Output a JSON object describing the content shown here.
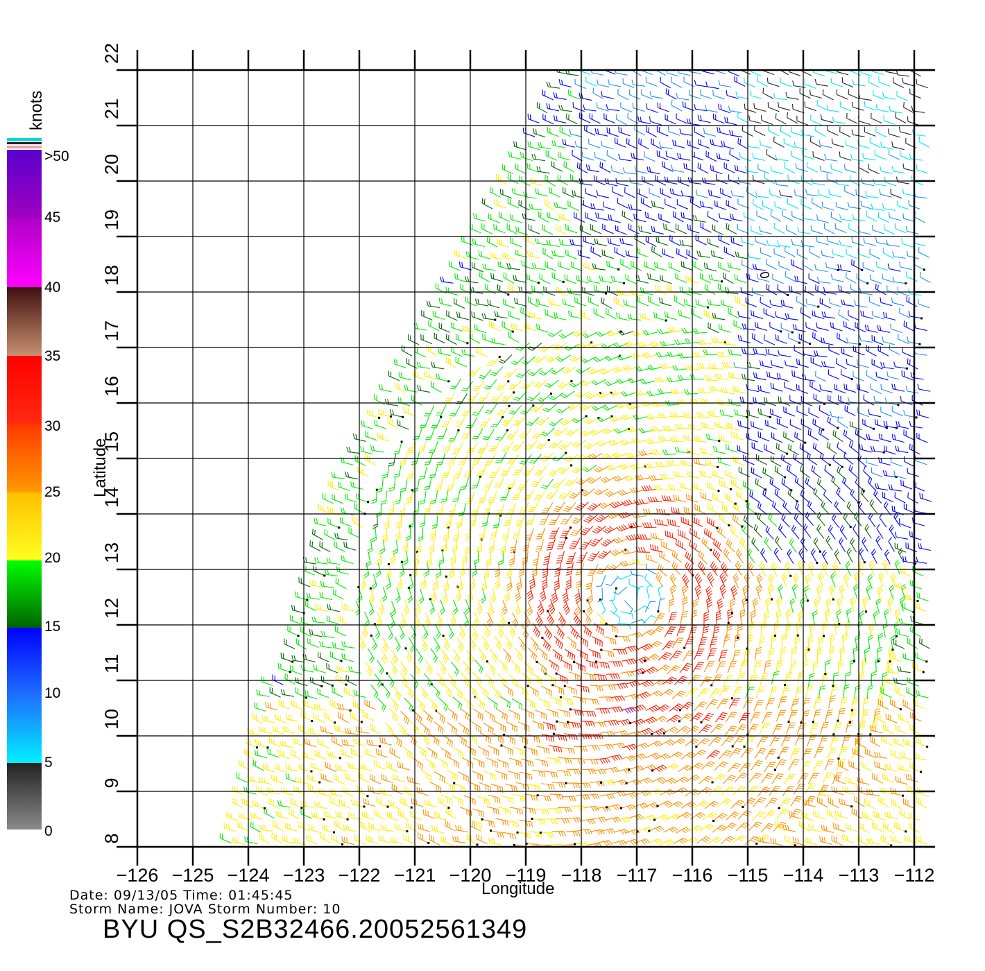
{
  "colorbar": {
    "title": "knots",
    "labels": [
      "0",
      "5",
      "10",
      "15",
      "20",
      "25",
      "30",
      "35",
      "40",
      "45",
      ">50"
    ],
    "colors": {
      "gray": "#7a7a7a",
      "black": "#222222",
      "cyan": "#00e5ff",
      "sky": "#1e90ff",
      "blue": "#0000ff",
      "darkgreen": "#006400",
      "green": "#00ee00",
      "yellow": "#ffee00",
      "orange": "#ff9000",
      "red": "#ff2000",
      "brown": "#c08060",
      "darkbrown": "#401010",
      "magenta": "#ff00ff",
      "purple": "#6a00cc"
    }
  },
  "map": {
    "xlabel": "Longitude",
    "ylabel": "Latitude",
    "lon_ticks": [
      "-126",
      "-125",
      "-124",
      "-123",
      "-122",
      "-121",
      "-120",
      "-119",
      "-118",
      "-117",
      "-116",
      "-115",
      "-114",
      "-113",
      "-112"
    ],
    "lat_ticks": [
      "8",
      "9",
      "10",
      "11",
      "12",
      "13",
      "14",
      "15",
      "16",
      "17",
      "18",
      "19",
      "20",
      "21",
      "22"
    ],
    "lon_range": [
      -126,
      -111.6
    ],
    "lat_range": [
      8,
      22
    ],
    "swath_marker": "0",
    "storm_center": {
      "lon": -117.1,
      "lat": 12.5
    }
  },
  "info": {
    "date_line": "Date: 09/13/05   Time: 01:45:45",
    "storm_line": "Storm Name: JOVA   Storm Number: 10",
    "product_id": "BYU QS_S2B32466.20052561349"
  }
}
